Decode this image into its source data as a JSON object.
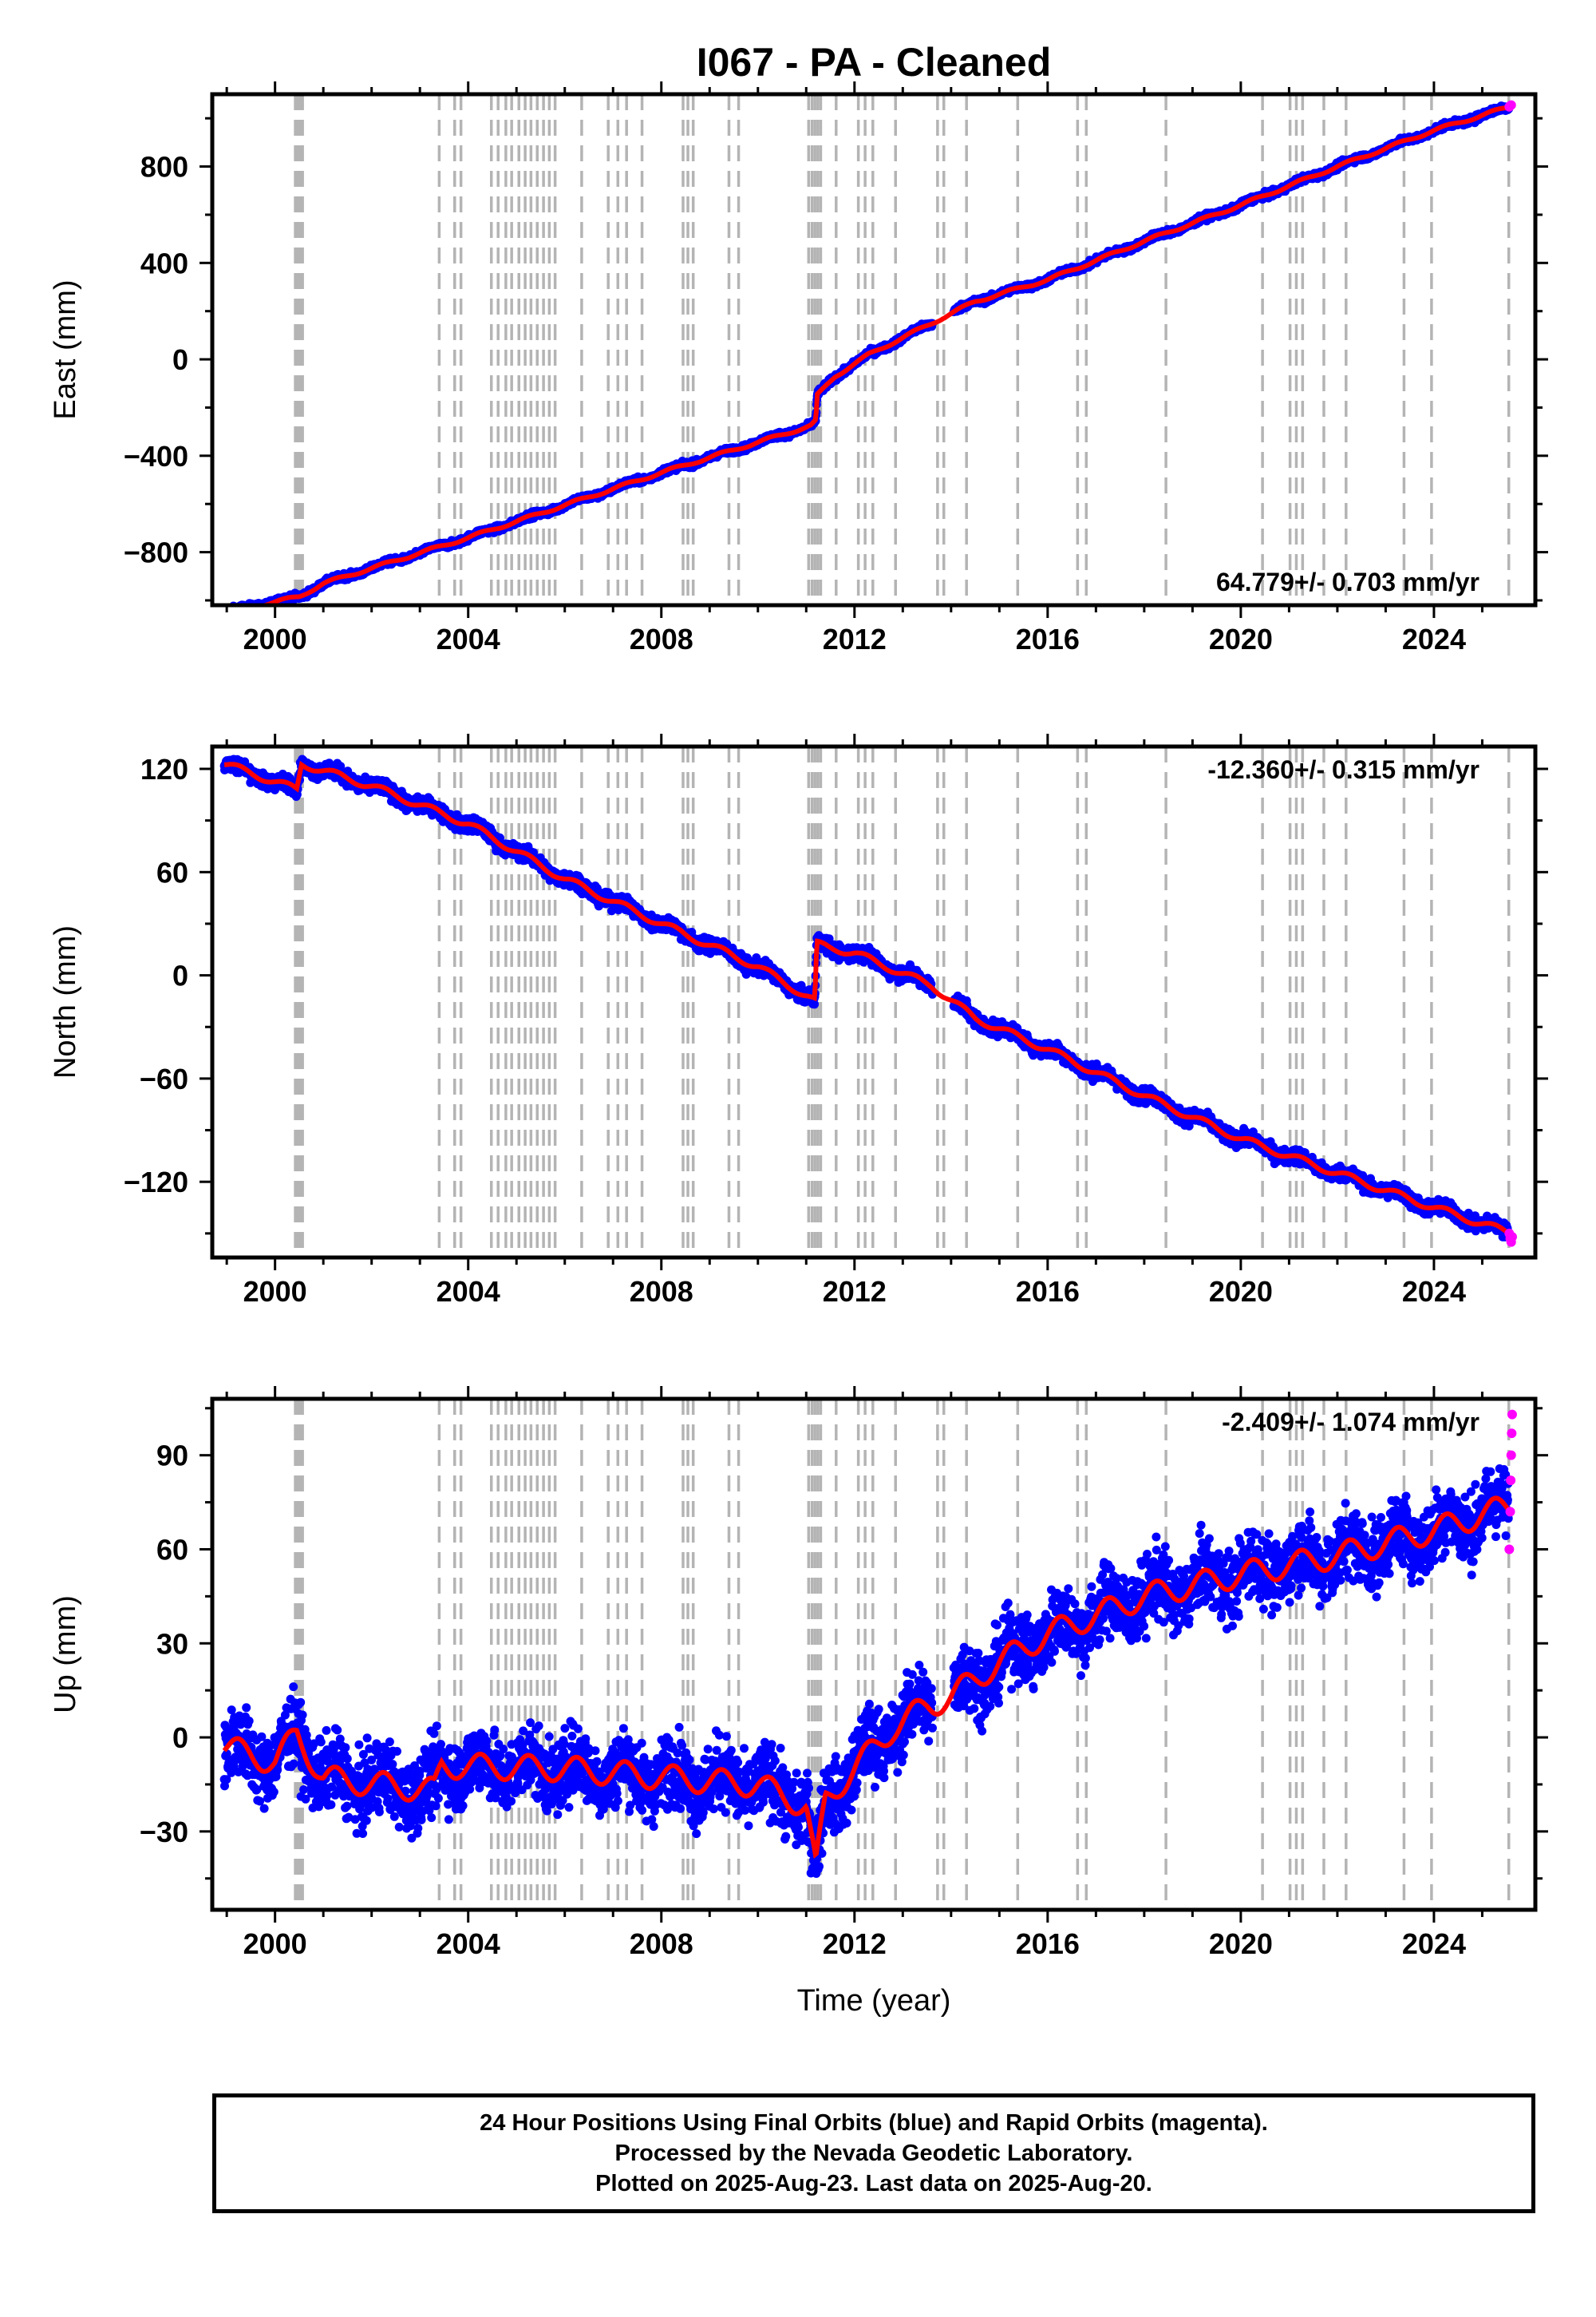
{
  "chart_data": {
    "type": "scatter",
    "title": "I067  - PA - Cleaned",
    "xlabel": "Time (year)",
    "xlim": [
      1998.7,
      2026.1
    ],
    "xticks": [
      2000,
      2004,
      2008,
      2012,
      2016,
      2020,
      2024
    ],
    "colors": {
      "final_orbits": "#0000ff",
      "rapid_orbits": "#ff00ff",
      "model": "#ff0000",
      "event_lines": "#b4b4b4"
    },
    "event_lines": [
      2000.42,
      2000.45,
      2000.48,
      2000.51,
      2000.54,
      2000.57,
      2003.4,
      2003.72,
      2003.85,
      2004.48,
      2004.62,
      2004.78,
      2004.9,
      2005.05,
      2005.18,
      2005.3,
      2005.43,
      2005.56,
      2005.68,
      2005.8,
      2006.35,
      2006.9,
      2007.1,
      2007.28,
      2007.6,
      2008.45,
      2008.55,
      2008.66,
      2009.4,
      2009.6,
      2011.05,
      2011.12,
      2011.18,
      2011.24,
      2011.3,
      2011.62,
      2012.08,
      2012.22,
      2012.38,
      2012.85,
      2013.72,
      2013.85,
      2014.32,
      2015.38,
      2016.62,
      2016.8,
      2018.45,
      2020.45,
      2021.02,
      2021.15,
      2021.28,
      2021.72,
      2022.18,
      2023.38,
      2023.95,
      2025.55
    ],
    "panels": [
      {
        "ylabel": "East (mm)",
        "ylim": [
          -1020,
          1100
        ],
        "yticks": [
          -800,
          -400,
          0,
          400,
          800
        ],
        "rate_label": "64.779+/- 0.703 mm/yr",
        "rate_position": "bottom-right",
        "model_points": [
          [
            1998.95,
            -1050
          ],
          [
            2000.5,
            -985
          ],
          [
            2001,
            -930
          ],
          [
            2004,
            -740
          ],
          [
            2008,
            -470
          ],
          [
            2011.1,
            -275
          ],
          [
            2011.2,
            -255
          ],
          [
            2011.23,
            -150
          ],
          [
            2011.6,
            -70
          ],
          [
            2012.3,
            20
          ],
          [
            2013.5,
            140
          ],
          [
            2014.5,
            240
          ],
          [
            2016,
            330
          ],
          [
            2018,
            490
          ],
          [
            2020,
            640
          ],
          [
            2022,
            800
          ],
          [
            2024,
            950
          ],
          [
            2025.6,
            1050
          ]
        ],
        "seasonal": {
          "amplitude": 6,
          "period": 1
        },
        "noise": 9,
        "rapid_points": [
          [
            2025.56,
            1048
          ],
          [
            2025.58,
            1052
          ],
          [
            2025.6,
            1055
          ]
        ]
      },
      {
        "ylabel": "North (mm)",
        "ylim": [
          -164,
          133
        ],
        "yticks": [
          -120,
          -60,
          0,
          60,
          120
        ],
        "rate_label": "-12.360+/- 0.315 mm/yr",
        "rate_position": "top-right",
        "model_points": [
          [
            1998.95,
            123
          ],
          [
            2000.45,
            108
          ],
          [
            2000.55,
            123
          ],
          [
            2002,
            110
          ],
          [
            2004,
            88
          ],
          [
            2006,
            56
          ],
          [
            2008,
            30
          ],
          [
            2010,
            5
          ],
          [
            2011.18,
            -15
          ],
          [
            2011.22,
            18
          ],
          [
            2012,
            13
          ],
          [
            2013.6,
            -6
          ],
          [
            2014.5,
            -25
          ],
          [
            2016,
            -43
          ],
          [
            2018,
            -70
          ],
          [
            2020,
            -95
          ],
          [
            2022,
            -115
          ],
          [
            2024,
            -135
          ],
          [
            2025.6,
            -150
          ]
        ],
        "seasonal": {
          "amplitude": 2,
          "period": 1
        },
        "noise": 3,
        "rapid_points": [
          [
            2025.56,
            -150
          ],
          [
            2025.58,
            -153
          ],
          [
            2025.6,
            -155
          ],
          [
            2025.62,
            -152
          ]
        ]
      },
      {
        "ylabel": "Up (mm)",
        "ylim": [
          -55,
          108
        ],
        "yticks": [
          -30,
          0,
          30,
          60,
          90
        ],
        "rate_label": "-2.409+/- 1.074 mm/yr",
        "rate_position": "top-right",
        "model_points": [
          [
            1998.95,
            -3
          ],
          [
            2000,
            -8
          ],
          [
            2000.45,
            1
          ],
          [
            2001,
            -13
          ],
          [
            2003.3,
            -17
          ],
          [
            2003.45,
            -9
          ],
          [
            2006,
            -10
          ],
          [
            2009,
            -14
          ],
          [
            2010,
            -15
          ],
          [
            2011,
            -22
          ],
          [
            2011.2,
            -42
          ],
          [
            2011.4,
            -20
          ],
          [
            2012,
            -10
          ],
          [
            2012.8,
            3
          ],
          [
            2013.5,
            10
          ],
          [
            2014,
            13
          ],
          [
            2015,
            24
          ],
          [
            2016,
            33
          ],
          [
            2018,
            45
          ],
          [
            2020,
            52
          ],
          [
            2022,
            58
          ],
          [
            2024,
            66
          ],
          [
            2025.6,
            74
          ]
        ],
        "seasonal": {
          "amplitude": 4,
          "period": 1
        },
        "noise": 8,
        "rapid_points": [
          [
            2025.56,
            60
          ],
          [
            2025.58,
            72
          ],
          [
            2025.59,
            82
          ],
          [
            2025.6,
            90
          ],
          [
            2025.61,
            97
          ],
          [
            2025.62,
            103
          ]
        ]
      }
    ]
  },
  "footer": {
    "line1": "24 Hour Positions Using Final Orbits (blue) and Rapid Orbits (magenta).",
    "line2": "Processed by the Nevada Geodetic Laboratory.",
    "line3": "Plotted on 2025-Aug-23. Last data on 2025-Aug-20."
  }
}
